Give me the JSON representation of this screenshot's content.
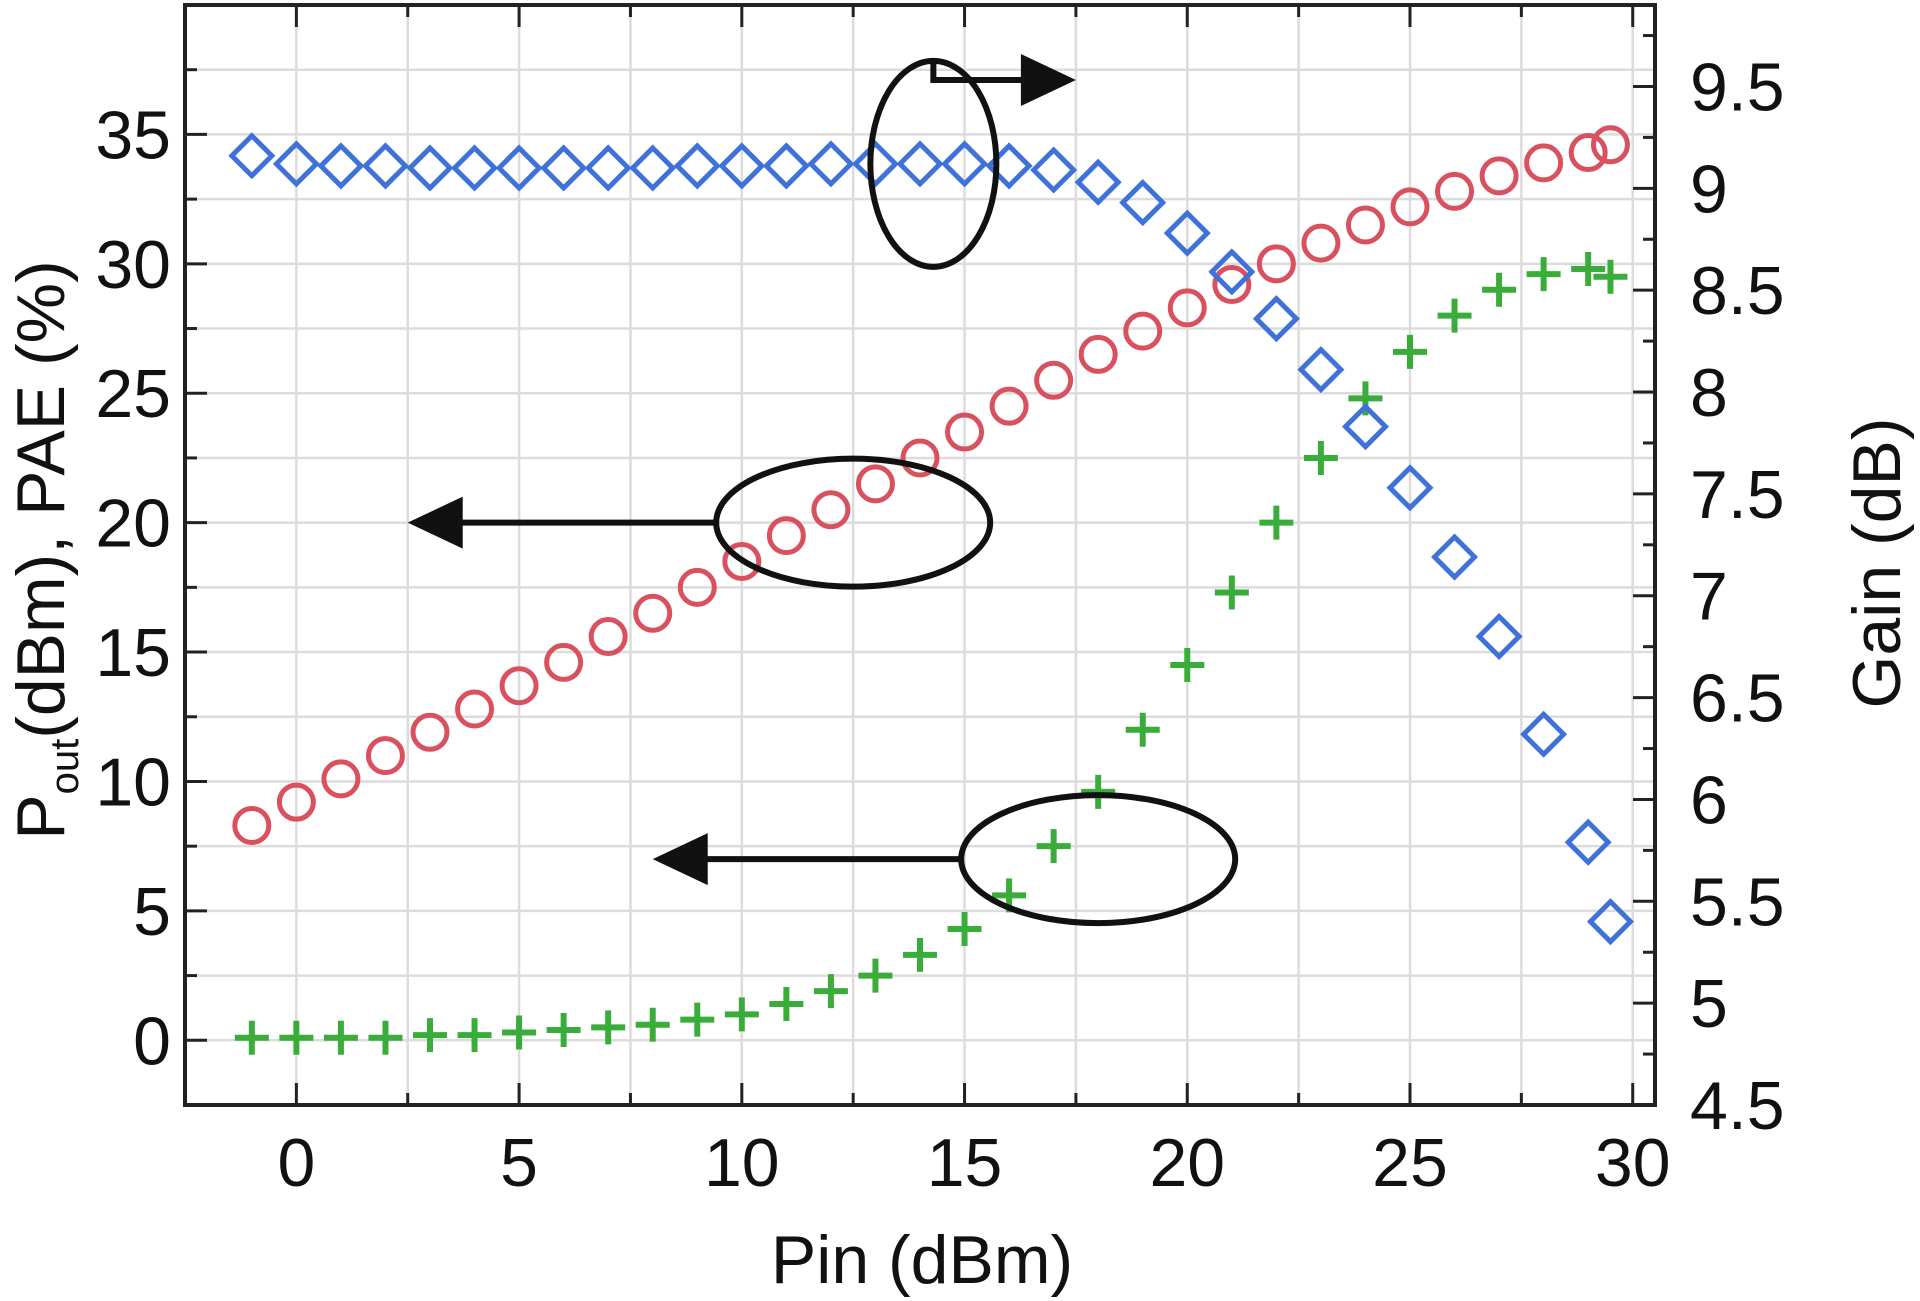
{
  "chart_data": {
    "type": "scatter",
    "xlabel": "Pin (dBm)",
    "ylabel_left": {
      "parts": [
        {
          "text": "P",
          "sub": false
        },
        {
          "text": "out",
          "sub": true
        },
        {
          "text": "(dBm), PAE (%)",
          "sub": false
        }
      ]
    },
    "ylabel_right": "Gain (dB)",
    "xlim": [
      -2.5,
      30.5
    ],
    "ylim_left": [
      -2.5,
      40
    ],
    "ylim_right": [
      4.5,
      9.9
    ],
    "x_ticks": [
      0,
      5,
      10,
      15,
      20,
      25,
      30
    ],
    "x_tick_labels": [
      "0",
      "5",
      "10",
      "15",
      "20",
      "25",
      "30"
    ],
    "y_left_ticks": [
      0,
      5,
      10,
      15,
      20,
      25,
      30,
      35
    ],
    "y_left_tick_labels": [
      "0",
      "5",
      "10",
      "15",
      "20",
      "25",
      "30",
      "35"
    ],
    "y_right_ticks": [
      4.5,
      5,
      5.5,
      6,
      6.5,
      7,
      7.5,
      8,
      8.5,
      9,
      9.5
    ],
    "y_right_tick_labels": [
      "4.5",
      "5",
      "5.5",
      "6",
      "6.5",
      "7",
      "7.5",
      "8",
      "8.5",
      "9",
      "9.5"
    ],
    "grid": true,
    "series": [
      {
        "marker": "circle",
        "color": "#d9505f",
        "axis": "left",
        "x": [
          -1,
          0,
          1,
          2,
          3,
          4,
          5,
          6,
          7,
          8,
          9,
          10,
          11,
          12,
          13,
          14,
          15,
          16,
          17,
          18,
          19,
          20,
          21,
          22,
          23,
          24,
          25,
          26,
          27,
          28,
          29,
          29.5
        ],
        "y": [
          8.3,
          9.2,
          10.1,
          11.0,
          11.9,
          12.8,
          13.7,
          14.6,
          15.6,
          16.5,
          17.5,
          18.5,
          19.5,
          20.5,
          21.5,
          22.5,
          23.5,
          24.5,
          25.5,
          26.5,
          27.4,
          28.3,
          29.2,
          30.0,
          30.8,
          31.5,
          32.2,
          32.8,
          33.4,
          33.9,
          34.3,
          34.6
        ]
      },
      {
        "marker": "plus",
        "color": "#3aac3a",
        "axis": "left",
        "x": [
          -1,
          0,
          1,
          2,
          3,
          4,
          5,
          6,
          7,
          8,
          9,
          10,
          11,
          12,
          13,
          14,
          15,
          16,
          17,
          18,
          19,
          20,
          21,
          22,
          23,
          24,
          25,
          26,
          27,
          28,
          29,
          29.5
        ],
        "y": [
          0.1,
          0.1,
          0.1,
          0.1,
          0.2,
          0.2,
          0.3,
          0.4,
          0.5,
          0.6,
          0.8,
          1.0,
          1.4,
          1.9,
          2.5,
          3.3,
          4.3,
          5.6,
          7.5,
          9.6,
          12.0,
          14.5,
          17.3,
          20.0,
          22.5,
          24.8,
          26.6,
          28.0,
          29.0,
          29.6,
          29.8,
          29.5
        ]
      },
      {
        "marker": "diamond",
        "color": "#3f72d8",
        "axis": "right",
        "x": [
          -1,
          0,
          1,
          2,
          3,
          4,
          5,
          6,
          7,
          8,
          9,
          10,
          11,
          12,
          13,
          14,
          15,
          16,
          17,
          18,
          19,
          20,
          21,
          22,
          23,
          24,
          25,
          26,
          27,
          28,
          29,
          29.5
        ],
        "y": [
          9.16,
          9.12,
          9.11,
          9.11,
          9.1,
          9.1,
          9.1,
          9.1,
          9.1,
          9.1,
          9.11,
          9.11,
          9.11,
          9.12,
          9.12,
          9.12,
          9.12,
          9.11,
          9.09,
          9.03,
          8.93,
          8.78,
          8.59,
          8.36,
          8.11,
          7.83,
          7.53,
          7.19,
          6.8,
          6.32,
          5.79,
          5.4
        ]
      }
    ],
    "annotations": [
      {
        "encircles": "gain",
        "arrow": "right"
      },
      {
        "encircles": "pout",
        "arrow": "left"
      },
      {
        "encircles": "pae",
        "arrow": "left"
      }
    ]
  }
}
